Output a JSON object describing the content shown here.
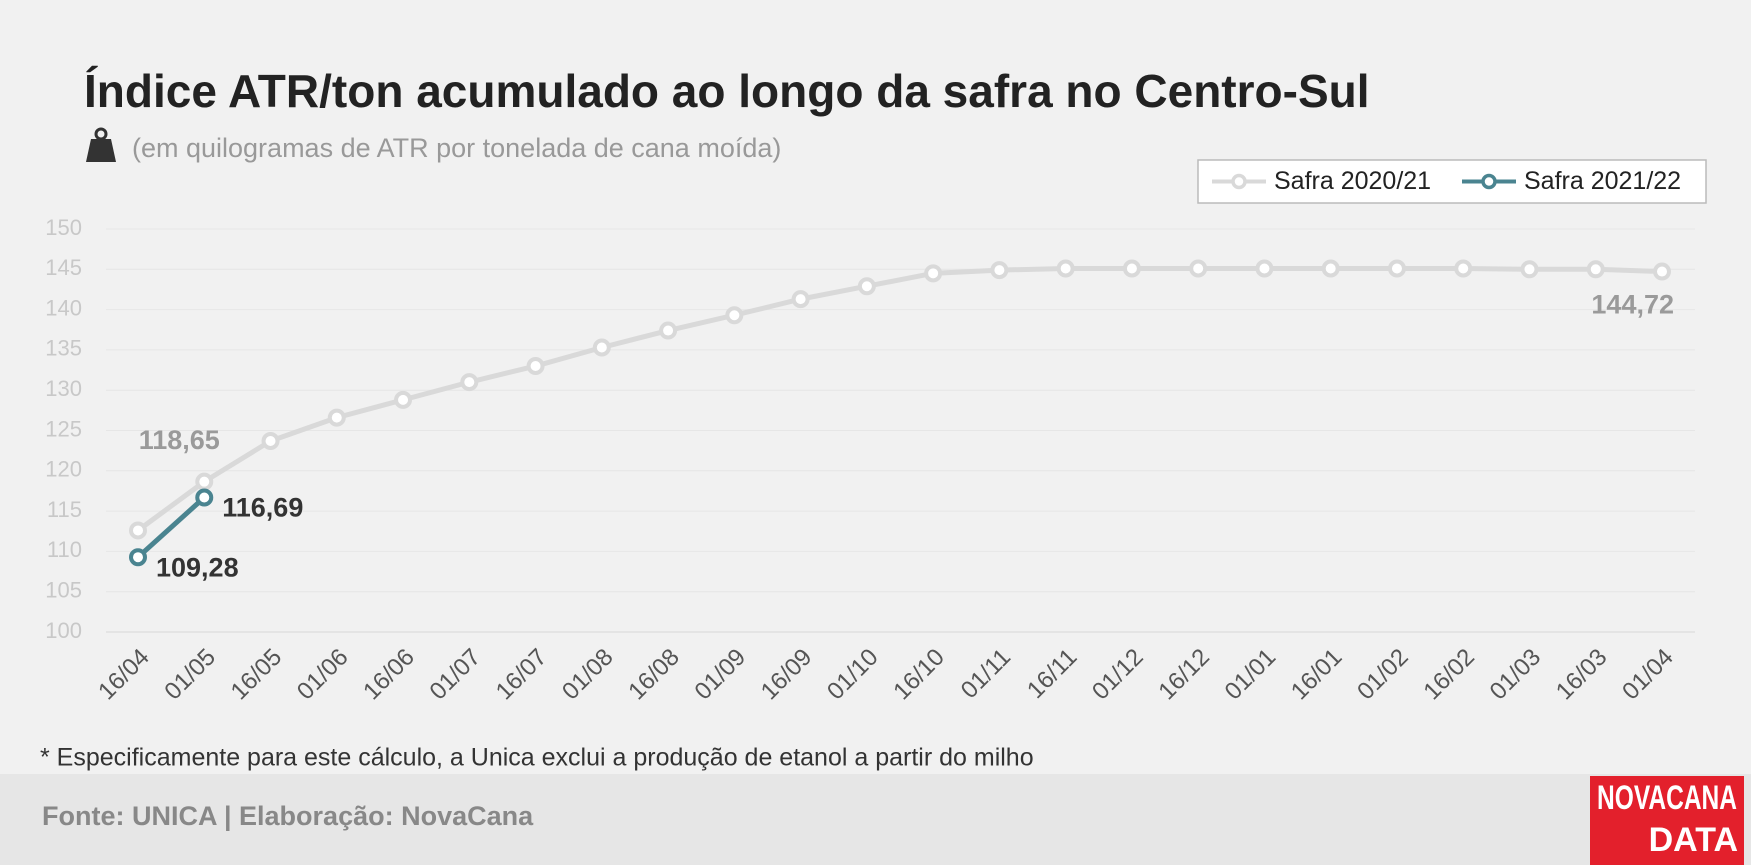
{
  "chart_data": {
    "type": "line",
    "title": "Índice ATR/ton acumulado ao longo da safra no Centro-Sul",
    "subtitle": "(em quilogramas de ATR por tonelada de cana moída)",
    "categories": [
      "16/04",
      "01/05",
      "16/05",
      "01/06",
      "16/06",
      "01/07",
      "16/07",
      "01/08",
      "16/08",
      "01/09",
      "16/09",
      "01/10",
      "16/10",
      "01/11",
      "16/11",
      "01/12",
      "16/12",
      "01/01",
      "16/01",
      "01/02",
      "16/02",
      "01/03",
      "16/03",
      "01/04"
    ],
    "series": [
      {
        "name": "Safra 2020/21",
        "color": "#d9d9d9",
        "label_color": "#9a9a9a",
        "values": [
          112.6,
          118.65,
          123.7,
          126.6,
          128.8,
          131.0,
          133.0,
          135.3,
          137.4,
          139.3,
          141.3,
          142.9,
          144.5,
          144.9,
          145.1,
          145.1,
          145.1,
          145.1,
          145.1,
          145.1,
          145.1,
          145.0,
          145.0,
          144.72
        ],
        "value_labels": [
          null,
          "118,65",
          null,
          null,
          null,
          null,
          null,
          null,
          null,
          null,
          null,
          null,
          null,
          null,
          null,
          null,
          null,
          null,
          null,
          null,
          null,
          null,
          null,
          "144,72"
        ]
      },
      {
        "name": "Safra 2021/22",
        "color": "#4a8490",
        "label_color": "#333333",
        "values": [
          109.28,
          116.69,
          null,
          null,
          null,
          null,
          null,
          null,
          null,
          null,
          null,
          null,
          null,
          null,
          null,
          null,
          null,
          null,
          null,
          null,
          null,
          null,
          null,
          null
        ],
        "value_labels": [
          "109,28",
          "116,69",
          null,
          null,
          null,
          null,
          null,
          null,
          null,
          null,
          null,
          null,
          null,
          null,
          null,
          null,
          null,
          null,
          null,
          null,
          null,
          null,
          null,
          null
        ]
      }
    ],
    "ylim": [
      100,
      150
    ],
    "yticks": [
      100,
      105,
      110,
      115,
      120,
      125,
      130,
      135,
      140,
      145,
      150
    ],
    "grid": true,
    "legend": "upper right",
    "note": "* Especificamente para este cálculo, a Unica exclui a produção de etanol a partir do milho",
    "source": "Fonte: UNICA | Elaboração: NovaCana",
    "logo": [
      "NOVACANA",
      "DATA"
    ]
  }
}
